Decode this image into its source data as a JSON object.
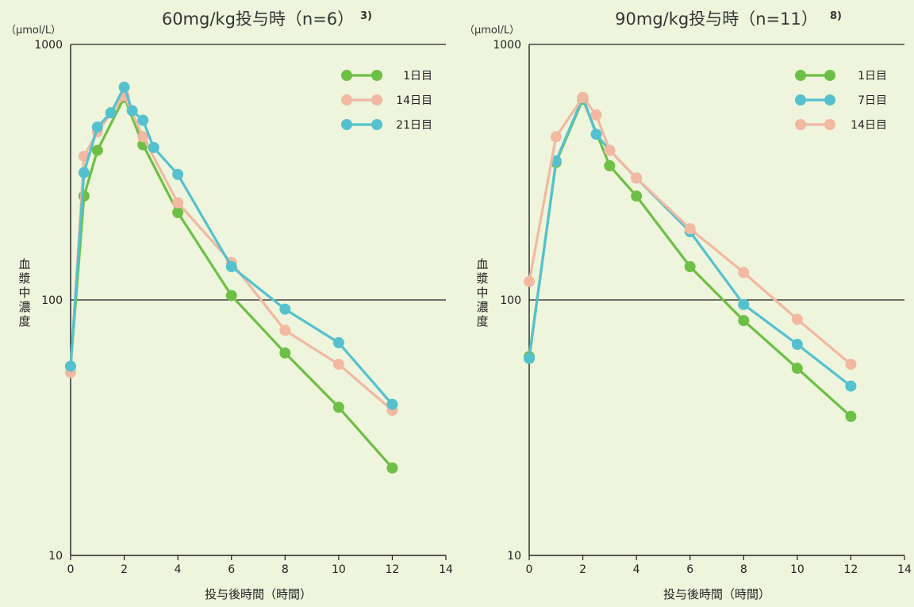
{
  "chart_data": [
    {
      "type": "line",
      "title": "60mg/kg投与時（n=6）",
      "title_ref": "3)",
      "unit_label": "（μmol/L）",
      "ylabel": "血漿中濃度",
      "xlabel": "投与後時間（時間）",
      "yscale": "log",
      "ylim": [
        10,
        1000
      ],
      "xlim": [
        0,
        14
      ],
      "xticks": [
        0,
        2,
        4,
        6,
        8,
        10,
        12,
        14
      ],
      "yticks": [
        10,
        100,
        1000
      ],
      "legend_position": "top-right",
      "series": [
        {
          "name": "1日目",
          "color": "#6dbf45",
          "x": [
            0,
            0.5,
            1,
            2,
            2.7,
            4,
            6,
            8,
            10,
            12
          ],
          "y": [
            55,
            255,
            385,
            620,
            405,
            220,
            104,
            62,
            38,
            22
          ]
        },
        {
          "name": "14日目",
          "color": "#f1b8a2",
          "x": [
            0,
            0.5,
            1,
            2,
            2.7,
            4,
            6,
            8,
            10,
            12
          ],
          "y": [
            52,
            365,
            455,
            630,
            435,
            240,
            140,
            76,
            56,
            37
          ]
        },
        {
          "name": "21日目",
          "color": "#55c1cf",
          "x": [
            0,
            0.5,
            1,
            1.5,
            2,
            2.3,
            2.7,
            3.1,
            4,
            6,
            8,
            10,
            12
          ],
          "y": [
            55,
            315,
            475,
            540,
            680,
            550,
            505,
            395,
            310,
            135,
            92,
            68,
            39
          ]
        }
      ]
    },
    {
      "type": "line",
      "title": "90mg/kg投与時（n=11）",
      "title_ref": "8)",
      "unit_label": "（μmol/L）",
      "ylabel": "血漿中濃度",
      "xlabel": "投与後時間（時間）",
      "yscale": "log",
      "ylim": [
        10,
        1000
      ],
      "xlim": [
        0,
        14
      ],
      "xticks": [
        0,
        2,
        4,
        6,
        8,
        10,
        12,
        14
      ],
      "yticks": [
        10,
        100,
        1000
      ],
      "legend_position": "top-right",
      "series": [
        {
          "name": "1日目",
          "color": "#6dbf45",
          "x": [
            0,
            1,
            2,
            3,
            4,
            6,
            8,
            10,
            12
          ],
          "y": [
            60,
            345,
            610,
            335,
            255,
            135,
            83,
            54,
            35
          ]
        },
        {
          "name": "7日目",
          "color": "#55c1cf",
          "x": [
            0,
            1,
            2,
            2.5,
            3,
            4,
            6,
            8,
            10,
            12
          ],
          "y": [
            59,
            350,
            620,
            445,
            385,
            300,
            185,
            96,
            67,
            46
          ]
        },
        {
          "name": "14日目",
          "color": "#f1b8a2",
          "x": [
            0,
            1,
            2,
            2.5,
            3,
            4,
            6,
            8,
            10,
            12
          ],
          "y": [
            118,
            435,
            620,
            530,
            385,
            300,
            190,
            128,
            84,
            56
          ]
        }
      ]
    }
  ]
}
